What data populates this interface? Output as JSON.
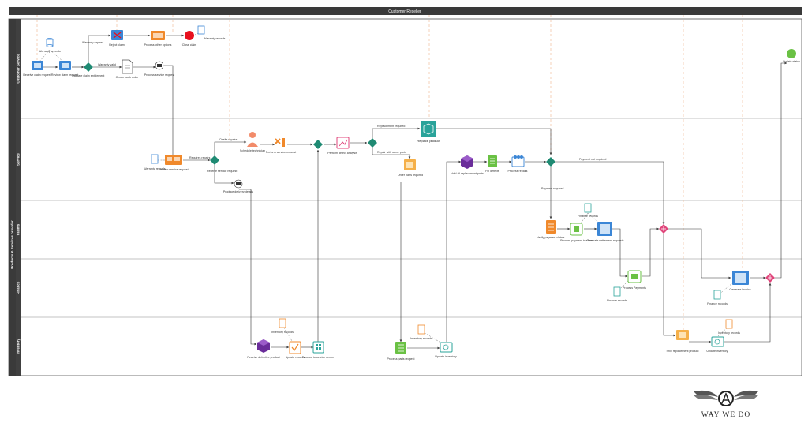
{
  "pool": {
    "title": "Customer Reseller"
  },
  "lanes": {
    "customer_service": "Customer Service",
    "group": "Products & Services provider",
    "service": "Service",
    "claims": "Claims",
    "finance": "Finance",
    "inventory": "Inventory"
  },
  "tasks": {
    "receive_claim": "Receive claim request",
    "review_claim": "Review claim request",
    "reject_claim": "Reject claim",
    "process_other": "Process other options",
    "close_claim": "Close claim",
    "create_work_order": "Create work order",
    "process_service": "Process service request",
    "review_service": "Review service request",
    "schedule_tech": "Schedule technician",
    "perform_service": "Perform service request",
    "perform_defect": "Perform defect analysis",
    "replace_product": "Replace product",
    "order_parts": "Order parts required",
    "hold_parts": "Hold all replacement parts",
    "fix_defects": "Fix defects",
    "process_repairs": "Process repairs",
    "produce_delivery": "Produce delivery details",
    "verify_payment": "Verify payment claims",
    "process_invoice": "Process payment invoices",
    "generate_payment": "Generate settlement requests",
    "process_payments": "Process Payments",
    "generate_invoice": "Generate invoice",
    "receive_defective": "Receive defective product",
    "update_records": "Update records",
    "forward_service": "Forward to service centre",
    "process_parts": "Process parts request",
    "update_inventory1": "Update inventory",
    "ship_replacement": "Ship replacement product",
    "update_inventory2": "Update inventory",
    "update_status": "Update status"
  },
  "data_stores": {
    "warranty": "Warranty records",
    "warranty2": "Warranty records",
    "service_rec": "Warranty records",
    "claims_rec": "Finance records",
    "finance_rec": "Finance records",
    "finance_rec2": "Finance records",
    "inventory_rec": "Inventory records",
    "inventory_rec2": "Inventory records",
    "inventory_rec3": "Inventory records"
  },
  "flow_labels": {
    "warranty_expired": "Warranty expired",
    "warranty_valid": "Warranty valid",
    "onsite_repairs": "Onsite repairs",
    "receive_service_request": "Receive service request",
    "requires_repairs": "Requires repairs",
    "replacement_required": "Replacement required",
    "repair_parts": "Repair with some parts",
    "payment_not_required": "Payment not required",
    "payment_required": "Payment required"
  },
  "logo": {
    "text": "WAY WE DO"
  },
  "colors": {
    "pool_bar": "#3a3a3a",
    "lane_bar": "#404040",
    "gateway": "#1f8a73",
    "gateway_pink": "#e0457b",
    "end_event": "#e8101e",
    "end_event_green": "#6ac144",
    "orange": "#f0892b",
    "blue": "#3b86d6",
    "purple": "#6a2d9a",
    "green": "#6ac144",
    "teal": "#2aa39a"
  }
}
